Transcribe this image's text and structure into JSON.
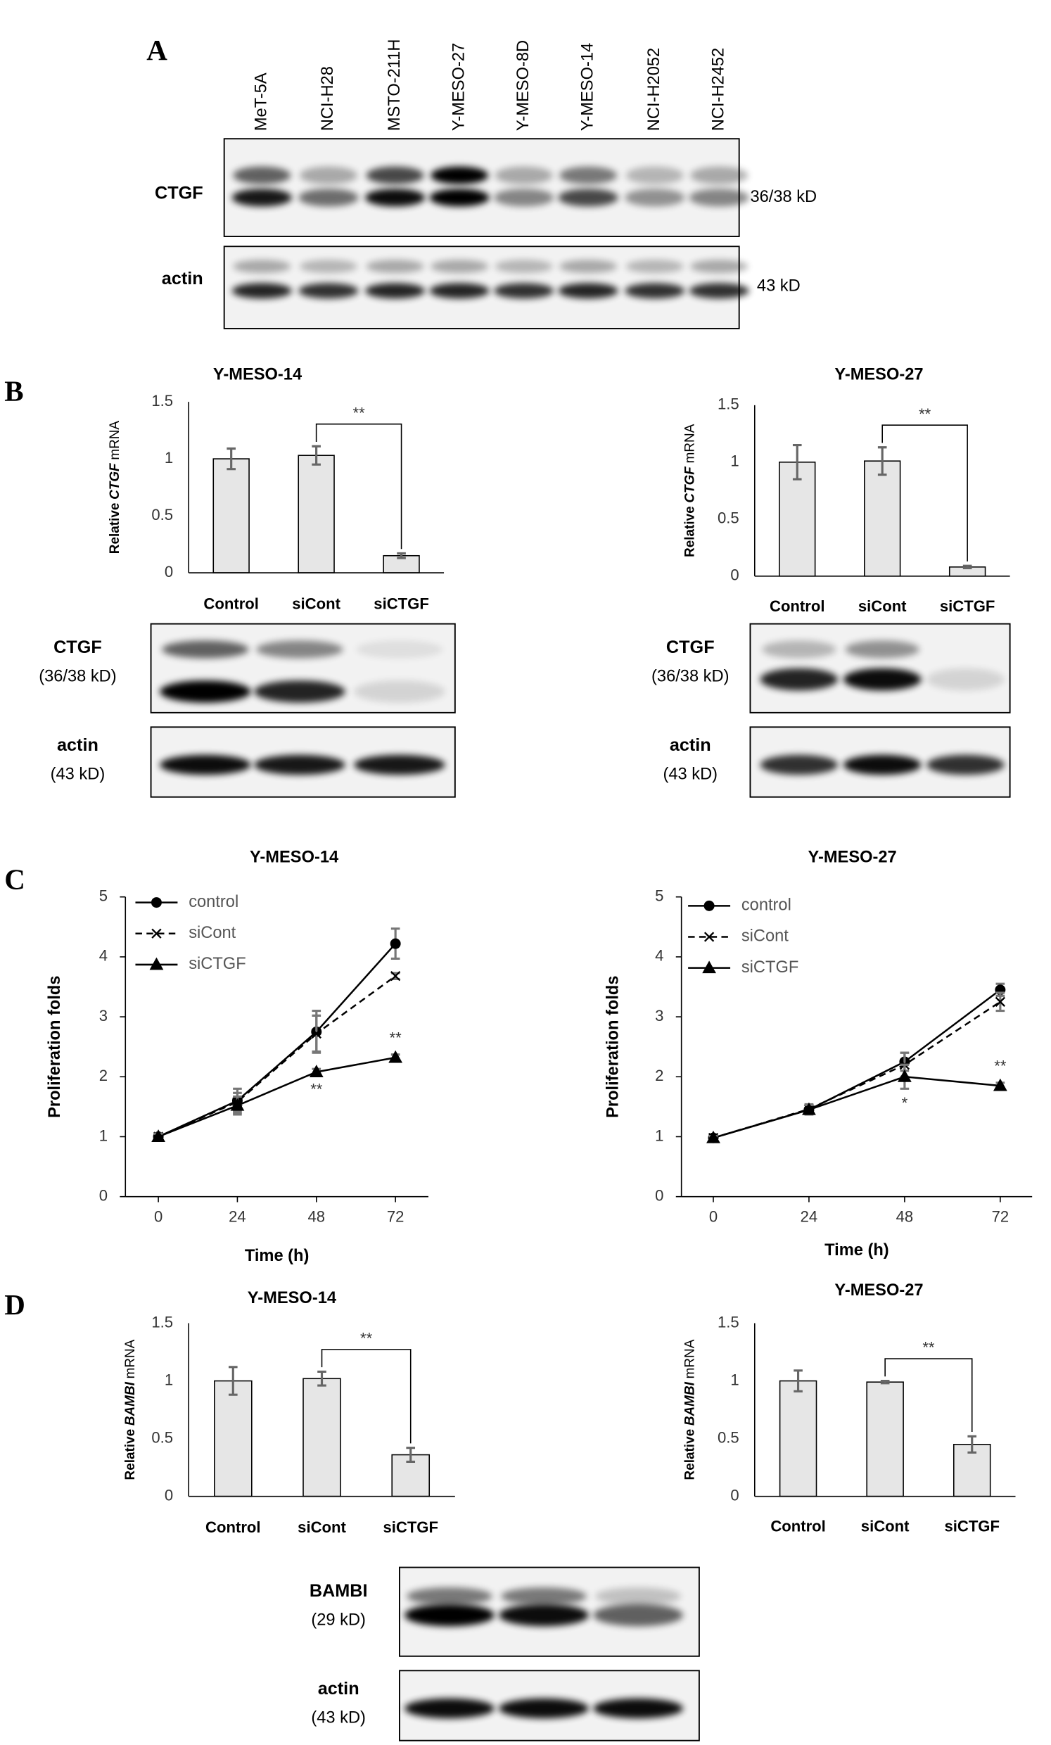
{
  "panel_labels": [
    "A",
    "B",
    "C",
    "D"
  ],
  "blots": [
    {
      "lanes": [
        "MeT-5A",
        "NCI-H28",
        "MSTO-211H",
        "Y-MESO-27",
        "Y-MESO-8D",
        "Y-MESO-14",
        "NCI-H2052",
        "NCI-H2452"
      ],
      "rows": [
        {
          "label": "CTGF",
          "size": "36/38 kD"
        },
        {
          "label": "actin",
          "size": "43 kD"
        }
      ]
    },
    {
      "rows": [
        {
          "label": "CTGF",
          "size": "(36/38 kD)"
        },
        {
          "label": "actin",
          "size": "(43 kD)"
        }
      ]
    },
    {
      "rows": [
        {
          "label": "CTGF",
          "size": "(36/38 kD)"
        },
        {
          "label": "actin",
          "size": "(43 kD)"
        }
      ]
    },
    {
      "rows": [
        {
          "label": "BAMBI",
          "size": "(29 kD)"
        },
        {
          "label": "actin",
          "size": "(43 kD)"
        }
      ]
    }
  ],
  "chart_data": [
    {
      "type": "bar",
      "title": "Y-MESO-14",
      "y_label": {
        "text": "Relative",
        "gene": "CTGF",
        "unit": "mRNA"
      },
      "categories": [
        "Control",
        "siCont",
        "siCTGF"
      ],
      "values": [
        1.0,
        1.03,
        0.15
      ],
      "errors": [
        0.09,
        0.08,
        0.02
      ],
      "color": "#e6e6e6",
      "ylim": [
        0,
        1.5
      ],
      "yticks": [
        0,
        0.5,
        1,
        1.5
      ],
      "significance": "**"
    },
    {
      "type": "bar",
      "title": "Y-MESO-27",
      "y_label": {
        "text": "Relative",
        "gene": "CTGF",
        "unit": "mRNA"
      },
      "categories": [
        "Control",
        "siCont",
        "siCTGF"
      ],
      "values": [
        1.0,
        1.01,
        0.08
      ],
      "errors": [
        0.15,
        0.12,
        0.01
      ],
      "color": "#e6e6e6",
      "ylim": [
        0,
        1.5
      ],
      "yticks": [
        0,
        0.5,
        1,
        1.5
      ],
      "significance": "**"
    },
    {
      "type": "line",
      "title": "Y-MESO-14",
      "x_label": "Time (h)",
      "y_label": "Proliferation folds",
      "x": [
        0,
        24,
        48,
        72
      ],
      "xlim": [
        -10,
        82
      ],
      "xticks": [
        0,
        24,
        48,
        72
      ],
      "ylim": [
        0,
        5
      ],
      "yticks": [
        0,
        1,
        2,
        3,
        4,
        5
      ],
      "series": [
        {
          "name": "control",
          "color": "#000000",
          "marker": "circle",
          "dashed": false,
          "values": [
            1,
            1.6,
            2.75,
            4.22
          ],
          "errors": [
            0.05,
            0.2,
            0.35,
            0.25
          ]
        },
        {
          "name": "siCont",
          "color": "#000000",
          "marker": "x",
          "dashed": true,
          "values": [
            1,
            1.58,
            2.72,
            3.68
          ],
          "errors": [
            0.05,
            0.15,
            0.3,
            0.05
          ]
        },
        {
          "name": "siCTGF",
          "color": "#000000",
          "marker": "triangle",
          "dashed": false,
          "values": [
            1,
            1.52,
            2.08,
            2.32
          ],
          "errors": [
            0.05,
            0.15,
            0.05,
            0.05
          ]
        }
      ],
      "significance": [
        null,
        null,
        "**",
        "**"
      ]
    },
    {
      "type": "line",
      "title": "Y-MESO-27",
      "x_label": "Time (h)",
      "y_label": "Proliferation folds",
      "x": [
        0,
        24,
        48,
        72
      ],
      "xlim": [
        -8,
        80
      ],
      "xticks": [
        0,
        24,
        48,
        72
      ],
      "ylim": [
        0,
        5
      ],
      "yticks": [
        0,
        1,
        2,
        3,
        4,
        5
      ],
      "series": [
        {
          "name": "control",
          "color": "#000000",
          "marker": "circle",
          "dashed": false,
          "values": [
            0.98,
            1.45,
            2.25,
            3.45
          ],
          "errors": [
            0.03,
            0.08,
            0.15,
            0.1
          ]
        },
        {
          "name": "siCont",
          "color": "#000000",
          "marker": "x",
          "dashed": true,
          "values": [
            0.98,
            1.46,
            2.2,
            3.25
          ],
          "errors": [
            0.03,
            0.08,
            0.2,
            0.15
          ]
        },
        {
          "name": "siCTGF",
          "color": "#000000",
          "marker": "triangle",
          "dashed": false,
          "values": [
            0.98,
            1.45,
            2.0,
            1.85
          ],
          "errors": [
            0.03,
            0.08,
            0.2,
            0.05
          ]
        }
      ],
      "significance": [
        null,
        null,
        "*",
        "**"
      ]
    },
    {
      "type": "bar",
      "title": "Y-MESO-14",
      "y_label": {
        "text": "Relative",
        "gene": "BAMBI",
        "unit": "mRNA"
      },
      "categories": [
        "Control",
        "siCont",
        "siCTGF"
      ],
      "values": [
        1.0,
        1.02,
        0.36
      ],
      "errors": [
        0.12,
        0.06,
        0.06
      ],
      "color": "#e6e6e6",
      "ylim": [
        0,
        1.5
      ],
      "yticks": [
        0,
        0.5,
        1,
        1.5
      ],
      "significance": "**"
    },
    {
      "type": "bar",
      "title": "Y-MESO-27",
      "y_label": {
        "text": "Relative",
        "gene": "BAMBI",
        "unit": "mRNA"
      },
      "categories": [
        "Control",
        "siCont",
        "siCTGF"
      ],
      "values": [
        1.0,
        0.99,
        0.45
      ],
      "errors": [
        0.09,
        0.01,
        0.07
      ],
      "color": "#e6e6e6",
      "ylim": [
        0,
        1.5
      ],
      "yticks": [
        0,
        0.5,
        1,
        1.5
      ],
      "significance": "**"
    }
  ]
}
